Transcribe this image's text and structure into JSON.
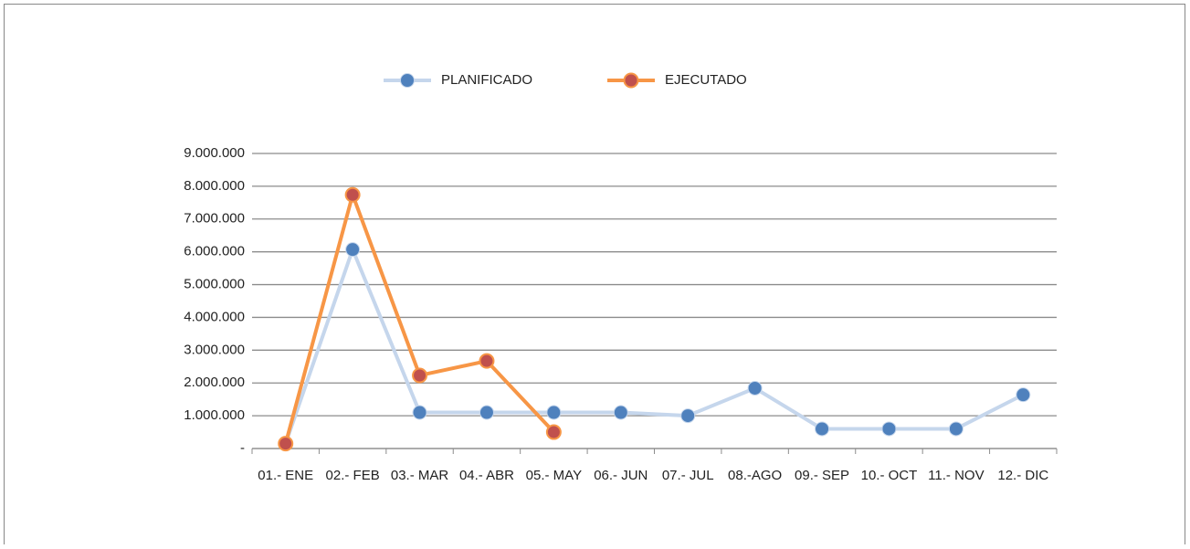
{
  "chart_data": {
    "type": "line",
    "categories": [
      "01.- ENE",
      "02.- FEB",
      "03.- MAR",
      "04.- ABR",
      "05.- MAY",
      "06.- JUN",
      "07.- JUL",
      "08.-AGO",
      "09.- SEP",
      "10.- OCT",
      "11.- NOV",
      "12.- DIC"
    ],
    "series": [
      {
        "name": "PLANIFICADO",
        "color": "#c5d6ec",
        "marker_color": "#4f81bd",
        "values": [
          150000,
          6070000,
          1100000,
          1100000,
          1100000,
          1100000,
          1000000,
          1840000,
          600000,
          600000,
          600000,
          1640000
        ]
      },
      {
        "name": "EJECUTADO",
        "color": "#f79646",
        "marker_color": "#c0504d",
        "values": [
          150000,
          7740000,
          2230000,
          2670000,
          500000,
          null,
          null,
          null,
          null,
          null,
          null,
          null
        ]
      }
    ],
    "ylim": [
      0,
      9000000
    ],
    "yticks": [
      {
        "value": 0,
        "label": "-"
      },
      {
        "value": 1000000,
        "label": "1.000.000"
      },
      {
        "value": 2000000,
        "label": "2.000.000"
      },
      {
        "value": 3000000,
        "label": "3.000.000"
      },
      {
        "value": 4000000,
        "label": "4.000.000"
      },
      {
        "value": 5000000,
        "label": "5.000.000"
      },
      {
        "value": 6000000,
        "label": "6.000.000"
      },
      {
        "value": 7000000,
        "label": "7.000.000"
      },
      {
        "value": 8000000,
        "label": "8.000.000"
      },
      {
        "value": 9000000,
        "label": "9.000.000"
      }
    ],
    "grid": true,
    "legend": "top"
  }
}
